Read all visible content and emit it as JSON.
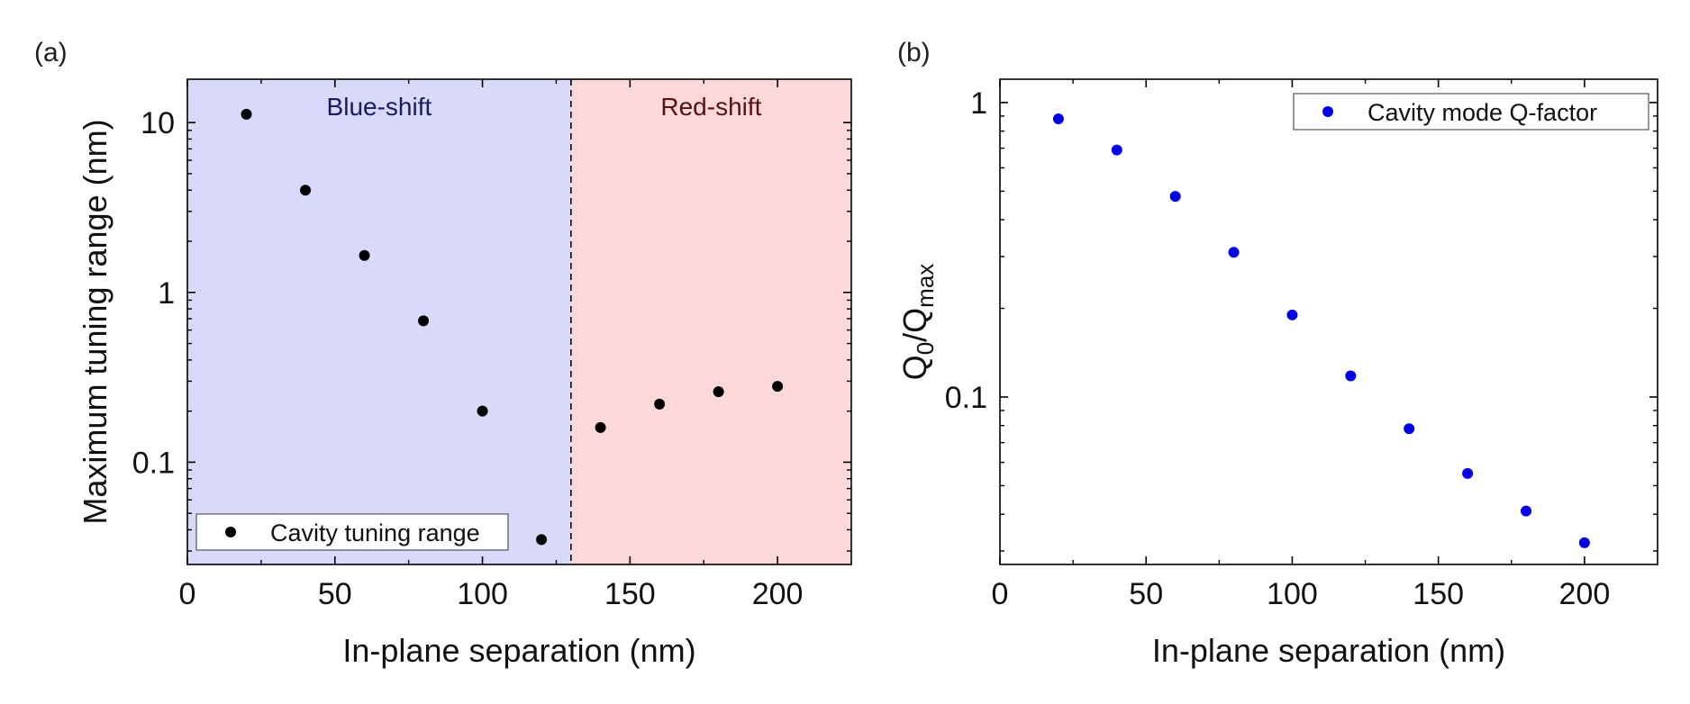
{
  "chart_data": [
    {
      "type": "scatter",
      "panel_label": "(a)",
      "xlabel": "In-plane separation (nm)",
      "ylabel": "Maximum tuning range (nm)",
      "xlim": [
        0,
        225
      ],
      "ylim": [
        0.025,
        18
      ],
      "yscale": "log",
      "x_ticks": [
        0,
        50,
        100,
        150,
        200
      ],
      "x_tick_labels": [
        "0",
        "50",
        "100",
        "150",
        "200"
      ],
      "y_ticks": [
        0.1,
        1,
        10
      ],
      "y_tick_labels": [
        "0.1",
        "1",
        "10"
      ],
      "regions": [
        {
          "label": "Blue-shift",
          "x_range": [
            0,
            130
          ],
          "color": "#d8d9fb",
          "text_color": "#1a1a60"
        },
        {
          "label": "Red-shift",
          "x_range": [
            130,
            225
          ],
          "color": "#fdd9d9",
          "text_color": "#5a1010"
        }
      ],
      "divider_x": 130,
      "legend_position": "bottom-left",
      "series": [
        {
          "name": "Cavity tuning range",
          "color": "#000000",
          "points": [
            {
              "x": 20,
              "y": 11.2
            },
            {
              "x": 40,
              "y": 4.0
            },
            {
              "x": 60,
              "y": 1.65
            },
            {
              "x": 80,
              "y": 0.68
            },
            {
              "x": 100,
              "y": 0.2
            },
            {
              "x": 120,
              "y": 0.035
            },
            {
              "x": 140,
              "y": 0.16
            },
            {
              "x": 160,
              "y": 0.22
            },
            {
              "x": 180,
              "y": 0.26
            },
            {
              "x": 200,
              "y": 0.28
            }
          ]
        }
      ]
    },
    {
      "type": "scatter",
      "panel_label": "(b)",
      "xlabel": "In-plane separation (nm)",
      "ylabel_main": "Q",
      "ylabel_sub1": "0",
      "ylabel_mid": "/Q",
      "ylabel_sub2": "max",
      "xlim": [
        0,
        225
      ],
      "ylim": [
        0.027,
        1.2
      ],
      "yscale": "log",
      "x_ticks": [
        0,
        50,
        100,
        150,
        200
      ],
      "x_tick_labels": [
        "0",
        "50",
        "100",
        "150",
        "200"
      ],
      "y_ticks": [
        0.1,
        1
      ],
      "y_tick_labels": [
        "0.1",
        "1"
      ],
      "legend_position": "top-right",
      "series": [
        {
          "name": "Cavity mode Q-factor",
          "color": "#0000ee",
          "points": [
            {
              "x": 20,
              "y": 0.88
            },
            {
              "x": 40,
              "y": 0.69
            },
            {
              "x": 60,
              "y": 0.48
            },
            {
              "x": 80,
              "y": 0.31
            },
            {
              "x": 100,
              "y": 0.19
            },
            {
              "x": 120,
              "y": 0.118
            },
            {
              "x": 140,
              "y": 0.078
            },
            {
              "x": 160,
              "y": 0.055
            },
            {
              "x": 180,
              "y": 0.041
            },
            {
              "x": 200,
              "y": 0.032
            }
          ]
        }
      ]
    }
  ]
}
